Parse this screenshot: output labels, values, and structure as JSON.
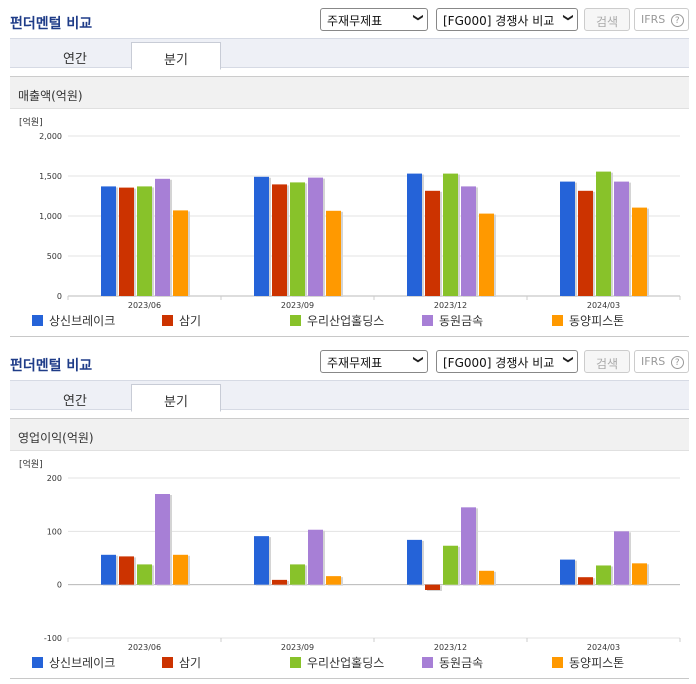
{
  "sections": [
    {
      "title": "펀더멘털 비교",
      "select1": "주재무제표",
      "select2": "[FG000] 경쟁사 비교",
      "search_label": "검색",
      "ifrs_label": "IFRS",
      "ifrs_help": "?",
      "tabs": [
        {
          "label": "연간",
          "active": false
        },
        {
          "label": "분기",
          "active": true
        }
      ],
      "metric": "매출액(억원)"
    },
    {
      "title": "펀더멘털 비교",
      "select1": "주재무제표",
      "select2": "[FG000] 경쟁사 비교",
      "search_label": "검색",
      "ifrs_label": "IFRS",
      "ifrs_help": "?",
      "tabs": [
        {
          "label": "연간",
          "active": false
        },
        {
          "label": "분기",
          "active": true
        }
      ],
      "metric": "영업이익(억원)"
    }
  ],
  "colors": [
    "#2563d8",
    "#cc3300",
    "#88c22a",
    "#a77fd6",
    "#ff9900"
  ],
  "chart_data": [
    {
      "type": "bar",
      "unit_label": "[억원]",
      "categories": [
        "2023/06",
        "2023/09",
        "2023/12",
        "2024/03"
      ],
      "ylim": [
        0,
        2000
      ],
      "yticks": [
        0,
        500,
        1000,
        1500,
        2000
      ],
      "ytick_labels": [
        "0",
        "500",
        "1,000",
        "1,500",
        "2,000"
      ],
      "grid": true,
      "legend_position": "bottom",
      "series": [
        {
          "name": "상신브레이크",
          "values": [
            1370,
            1490,
            1530,
            1430
          ]
        },
        {
          "name": "삼기",
          "values": [
            1355,
            1395,
            1315,
            1315
          ]
        },
        {
          "name": "우리산업홀딩스",
          "values": [
            1370,
            1420,
            1530,
            1555
          ]
        },
        {
          "name": "동원금속",
          "values": [
            1465,
            1480,
            1370,
            1430
          ]
        },
        {
          "name": "동양피스톤",
          "values": [
            1070,
            1065,
            1030,
            1105
          ]
        }
      ]
    },
    {
      "type": "bar",
      "unit_label": "[억원]",
      "categories": [
        "2023/06",
        "2023/09",
        "2023/12",
        "2024/03"
      ],
      "ylim": [
        -100,
        200
      ],
      "yticks": [
        -100,
        0,
        100,
        200
      ],
      "ytick_labels": [
        "-100",
        "0",
        "100",
        "200"
      ],
      "grid": true,
      "legend_position": "bottom",
      "series": [
        {
          "name": "상신브레이크",
          "values": [
            56,
            91,
            84,
            47
          ]
        },
        {
          "name": "삼기",
          "values": [
            53,
            9,
            -10,
            14
          ]
        },
        {
          "name": "우리산업홀딩스",
          "values": [
            38,
            38,
            73,
            36
          ]
        },
        {
          "name": "동원금속",
          "values": [
            170,
            103,
            145,
            100
          ]
        },
        {
          "name": "동양피스톤",
          "values": [
            56,
            16,
            26,
            40
          ]
        }
      ]
    }
  ]
}
